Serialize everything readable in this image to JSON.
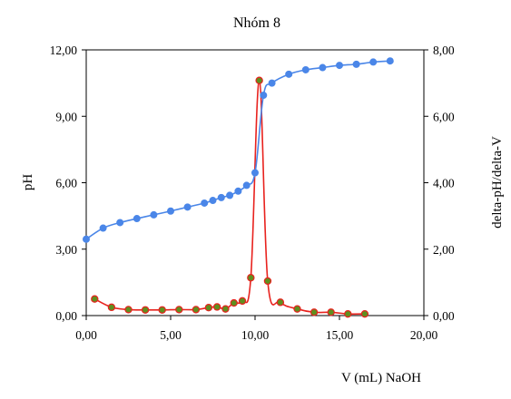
{
  "chart_data": {
    "type": "line",
    "title": "Nhóm 8",
    "xlabel": "V (mL) NaOH",
    "ylabel": "pH",
    "y2label": "delta-pH/delta-V",
    "xlim": [
      0,
      20
    ],
    "ylim": [
      0,
      12
    ],
    "y2lim": [
      0,
      8
    ],
    "grid": false,
    "legend": "none",
    "x_ticks": [
      "0,00",
      "5,00",
      "10,00",
      "15,00",
      "20,00"
    ],
    "y_ticks": [
      "0,00",
      "3,00",
      "6,00",
      "9,00",
      "12,00"
    ],
    "y2_ticks": [
      "0,00",
      "2,00",
      "4,00",
      "6,00",
      "8,00"
    ],
    "series": [
      {
        "axis": "left",
        "color": "#4a86e8",
        "marker_fill": "#4a86e8",
        "x": [
          0,
          1,
          2,
          3,
          4,
          5,
          6,
          7,
          7.5,
          8,
          8.5,
          9,
          9.5,
          10,
          10.5,
          11,
          12,
          13,
          14,
          15,
          16,
          17,
          18
        ],
        "values": [
          3.45,
          3.95,
          4.2,
          4.38,
          4.55,
          4.72,
          4.9,
          5.08,
          5.2,
          5.33,
          5.43,
          5.62,
          5.88,
          6.45,
          9.95,
          10.5,
          10.9,
          11.1,
          11.2,
          11.3,
          11.35,
          11.45,
          11.5
        ]
      },
      {
        "axis": "right",
        "color": "#e8221e",
        "marker_fill": "#5f8f1f",
        "x": [
          0.5,
          1.5,
          2.5,
          3.5,
          4.5,
          5.5,
          6.5,
          7.25,
          7.75,
          8.25,
          8.75,
          9.25,
          9.75,
          10.25,
          10.75,
          11.5,
          12.5,
          13.5,
          14.5,
          15.5,
          16.5
        ],
        "values": [
          0.5,
          0.25,
          0.18,
          0.17,
          0.17,
          0.18,
          0.18,
          0.24,
          0.26,
          0.2,
          0.38,
          0.44,
          1.14,
          7.08,
          1.04,
          0.4,
          0.2,
          0.1,
          0.1,
          0.05,
          0.05
        ]
      }
    ]
  }
}
